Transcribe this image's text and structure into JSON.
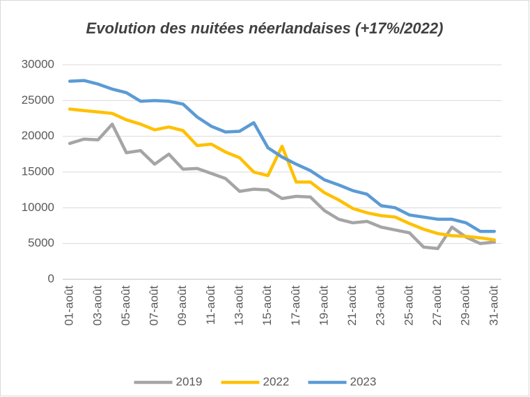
{
  "chart_data": {
    "type": "line",
    "title": "Evolution des nuitées néerlandaises (+17%/2022)",
    "categories": [
      "01-août",
      null,
      "03-août",
      null,
      "05-août",
      null,
      "07-août",
      null,
      "09-août",
      null,
      "11-août",
      null,
      "13-août",
      null,
      "15-août",
      null,
      "17-août",
      null,
      "19-août",
      null,
      "21-août",
      null,
      "23-août",
      null,
      "25-août",
      null,
      "27-août",
      null,
      "29-août",
      null,
      "31-août"
    ],
    "series": [
      {
        "name": "2019",
        "color": "#a5a5a5",
        "values": [
          19000,
          19600,
          19500,
          21700,
          17700,
          18000,
          16100,
          17500,
          15400,
          15500,
          14800,
          14100,
          12300,
          12600,
          12500,
          11300,
          11600,
          11500,
          9600,
          8400,
          7900,
          8100,
          7300,
          6900,
          6500,
          4500,
          4300,
          7300,
          5900,
          5000,
          5200
        ]
      },
      {
        "name": "2022",
        "color": "#ffc000",
        "values": [
          23800,
          23600,
          23400,
          23200,
          22300,
          21700,
          20900,
          21300,
          20800,
          18700,
          18900,
          17800,
          17000,
          15000,
          14500,
          18600,
          13600,
          13600,
          12100,
          11100,
          9900,
          9300,
          8900,
          8700,
          7800,
          7000,
          6400,
          6100,
          6000,
          5800,
          5500
        ]
      },
      {
        "name": "2023",
        "color": "#5b9bd5",
        "values": [
          27700,
          27800,
          27300,
          26600,
          26100,
          24900,
          25000,
          24900,
          24500,
          22700,
          21400,
          20600,
          20700,
          21900,
          18400,
          17100,
          16100,
          15200,
          13900,
          13200,
          12400,
          11900,
          10300,
          10000,
          9000,
          8700,
          8400,
          8400,
          7900,
          6700,
          6700
        ]
      }
    ],
    "ylim": [
      0,
      30000
    ],
    "yticks": [
      0,
      5000,
      10000,
      15000,
      20000,
      25000,
      30000
    ],
    "grid": true,
    "legend": "bottom"
  }
}
